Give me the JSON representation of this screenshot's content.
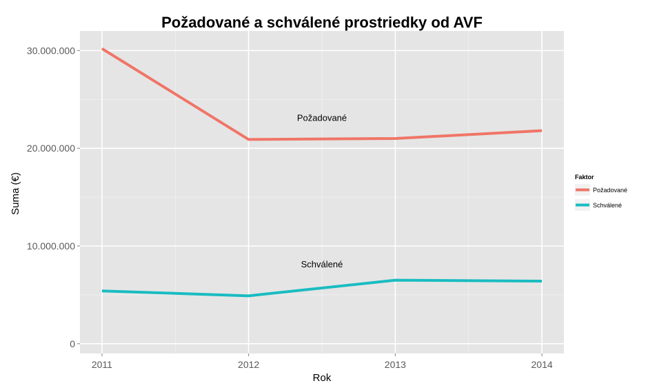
{
  "chart_data": {
    "type": "line",
    "title": "Požadované a schválené prostriedky od AVF",
    "xlabel": "Rok",
    "ylabel": "Suma (€)",
    "x": [
      2011,
      2012,
      2013,
      2014
    ],
    "x_tick_labels": [
      "2011",
      "2012",
      "2013",
      "2014"
    ],
    "xlim": [
      2010.85,
      2014.15
    ],
    "ylim": [
      -1000000,
      32000000
    ],
    "y_ticks": [
      0,
      10000000,
      20000000,
      30000000
    ],
    "y_tick_labels": [
      "0",
      "10.000.000",
      "20.000.000",
      "30.000.000"
    ],
    "grid": true,
    "legend": {
      "title": "Faktor",
      "position": "right"
    },
    "series": [
      {
        "name": "Požadované",
        "color": "#f07567",
        "values": [
          30200000,
          20900000,
          21000000,
          21800000
        ]
      },
      {
        "name": "Schválené",
        "color": "#19bcc1",
        "values": [
          5400000,
          4900000,
          6500000,
          6400000
        ]
      }
    ],
    "annotations": [
      {
        "text": "Požadované",
        "x": 2012.5,
        "y": 22800000
      },
      {
        "text": "Schválené",
        "x": 2012.5,
        "y": 7800000
      }
    ]
  }
}
